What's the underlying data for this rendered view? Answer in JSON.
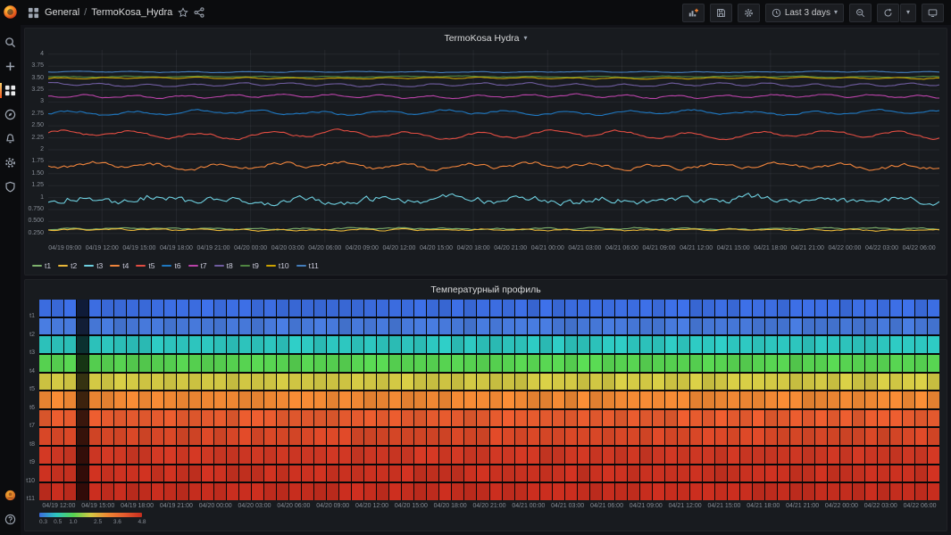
{
  "nav": {
    "section": "General",
    "separator": "/",
    "dashboard": "TermoKosa_Hydra",
    "time_range_label": "Last 3 days"
  },
  "icons": {
    "sidebar": [
      "search-icon",
      "plus-icon",
      "dashboards-icon",
      "explore-compass-icon",
      "alerting-bell-icon",
      "configuration-gear-icon",
      "server-admin-shield-icon",
      "user-avatar",
      "help-icon"
    ],
    "toolbar": [
      "add-panel-icon",
      "save-dashboard-icon",
      "dashboard-settings-icon",
      "clock-icon",
      "zoom-out-icon",
      "refresh-icon",
      "cycle-view-tv-icon"
    ],
    "breadcrumb": [
      "apps-grid-icon",
      "star-icon",
      "share-icon"
    ],
    "panel": [
      "panel-menu-caret-icon"
    ]
  },
  "chart_data": [
    {
      "type": "line",
      "title": "TermoKosa Hydra",
      "xlabel": "",
      "ylabel": "",
      "ylim": [
        0.25,
        4
      ],
      "grid": true,
      "legend_position": "bottom",
      "y_ticks": [
        "4",
        "3.75",
        "3.50",
        "3.25",
        "3",
        "2.75",
        "2.50",
        "2.25",
        "2",
        "1.75",
        "1.50",
        "1.25",
        "1",
        "0.750",
        "0.500",
        "0.250"
      ],
      "y_tick_values": [
        4,
        3.75,
        3.5,
        3.25,
        3,
        2.75,
        2.5,
        2.25,
        2,
        1.75,
        1.5,
        1.25,
        1,
        0.75,
        0.5,
        0.25
      ],
      "x_ticks": [
        "04/19 09:00",
        "04/19 12:00",
        "04/19 15:00",
        "04/19 18:00",
        "04/19 21:00",
        "04/20 00:00",
        "04/20 03:00",
        "04/20 06:00",
        "04/20 09:00",
        "04/20 12:00",
        "04/20 15:00",
        "04/20 18:00",
        "04/20 21:00",
        "04/21 00:00",
        "04/21 03:00",
        "04/21 06:00",
        "04/21 09:00",
        "04/21 12:00",
        "04/21 15:00",
        "04/21 18:00",
        "04/21 21:00",
        "04/22 00:00",
        "04/22 03:00",
        "04/22 06:00"
      ],
      "series": [
        {
          "name": "t1",
          "color": "#7EB26D",
          "base": 0.35,
          "amp": 0.012,
          "jitter": 0.01
        },
        {
          "name": "t2",
          "color": "#EAB839",
          "base": 0.325,
          "amp": 0.012,
          "jitter": 0.01
        },
        {
          "name": "t3",
          "color": "#6ED0E0",
          "base": 0.95,
          "amp": 0.045,
          "jitter": 0.055
        },
        {
          "name": "t4",
          "color": "#EF843C",
          "base": 1.66,
          "amp": 0.045,
          "jitter": 0.028
        },
        {
          "name": "t5",
          "color": "#E24D42",
          "base": 2.32,
          "amp": 0.06,
          "jitter": 0.018
        },
        {
          "name": "t6",
          "color": "#1F78C1",
          "base": 2.78,
          "amp": 0.035,
          "jitter": 0.014
        },
        {
          "name": "t7",
          "color": "#BA43A9",
          "base": 3.12,
          "amp": 0.028,
          "jitter": 0.01
        },
        {
          "name": "t8",
          "color": "#705DA0",
          "base": 3.36,
          "amp": 0.028,
          "jitter": 0.008
        },
        {
          "name": "t9",
          "color": "#508642",
          "base": 3.53,
          "amp": 0.01,
          "jitter": 0.006
        },
        {
          "name": "t10",
          "color": "#CCA300",
          "base": 3.5,
          "amp": 0.012,
          "jitter": 0.006
        },
        {
          "name": "t11",
          "color": "#447EBC",
          "base": 3.63,
          "amp": 0.008,
          "jitter": 0.005
        }
      ]
    },
    {
      "type": "heatmap",
      "title": "Температурный профиль",
      "columns": 72,
      "dim_column_index": 3,
      "rows": [
        {
          "name": "t1",
          "color": "#3B6CDF",
          "value": 0.35
        },
        {
          "name": "t2",
          "color": "#4678D9",
          "value": 0.4
        },
        {
          "name": "t3",
          "color": "#2DC5BE",
          "value": 1.0
        },
        {
          "name": "t4",
          "color": "#57D351",
          "value": 1.7
        },
        {
          "name": "t5",
          "color": "#D3C944",
          "value": 2.3
        },
        {
          "name": "t6",
          "color": "#EF8733",
          "value": 2.8
        },
        {
          "name": "t7",
          "color": "#E55A2E",
          "value": 3.1
        },
        {
          "name": "t8",
          "color": "#D84727",
          "value": 3.4
        },
        {
          "name": "t9",
          "color": "#CD3723",
          "value": 3.5
        },
        {
          "name": "t10",
          "color": "#C93120",
          "value": 3.55
        },
        {
          "name": "t11",
          "color": "#C52D1E",
          "value": 3.65
        }
      ],
      "x_ticks": [
        "04/19 12:00",
        "04/19 15:00",
        "04/19 18:00",
        "04/19 21:00",
        "04/20 00:00",
        "04/20 03:00",
        "04/20 06:00",
        "04/20 09:00",
        "04/20 12:00",
        "04/20 15:00",
        "04/20 18:00",
        "04/20 21:00",
        "04/21 00:00",
        "04/21 03:00",
        "04/21 06:00",
        "04/21 09:00",
        "04/21 12:00",
        "04/21 15:00",
        "04/21 18:00",
        "04/21 21:00",
        "04/22 00:00",
        "04/22 03:00",
        "04/22 06:00"
      ],
      "colorbar": {
        "labels": [
          "0.3",
          "0.5",
          "1.0",
          "2.5",
          "3.6",
          "4.8"
        ],
        "values": [
          0.3,
          0.5,
          1.0,
          2.5,
          3.6,
          4.8
        ],
        "gradient": [
          "#3B6CDF",
          "#2DC5BE",
          "#57D351",
          "#D3C944",
          "#EF8733",
          "#E55A2E",
          "#C52D1E"
        ]
      }
    }
  ]
}
